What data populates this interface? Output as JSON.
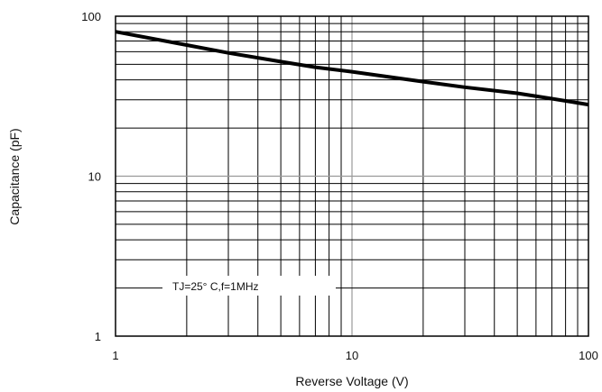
{
  "chart_data": {
    "type": "line",
    "xlabel": "Reverse Voltage (V)",
    "ylabel": "Capacitance (pF)",
    "x_scale": "log",
    "y_scale": "log",
    "xlim": [
      1,
      100
    ],
    "ylim": [
      1,
      100
    ],
    "x_ticks": [
      {
        "value": 1,
        "label": "1"
      },
      {
        "value": 10,
        "label": "10"
      },
      {
        "value": 100,
        "label": "100"
      }
    ],
    "y_ticks": [
      {
        "value": 1,
        "label": "1"
      },
      {
        "value": 10,
        "label": "10"
      },
      {
        "value": 100,
        "label": "100"
      }
    ],
    "grid": true,
    "annotation": "TJ=25° C,f=1MHz",
    "series": [
      {
        "x": [
          1,
          2,
          3,
          5,
          7,
          10,
          20,
          30,
          50,
          70,
          100
        ],
        "values": [
          80,
          66,
          59,
          52,
          48,
          45,
          39,
          36,
          33,
          30.5,
          28
        ]
      }
    ],
    "colors": {
      "line": "#000000",
      "grid": "#000000",
      "grid_major": "#999999"
    }
  }
}
